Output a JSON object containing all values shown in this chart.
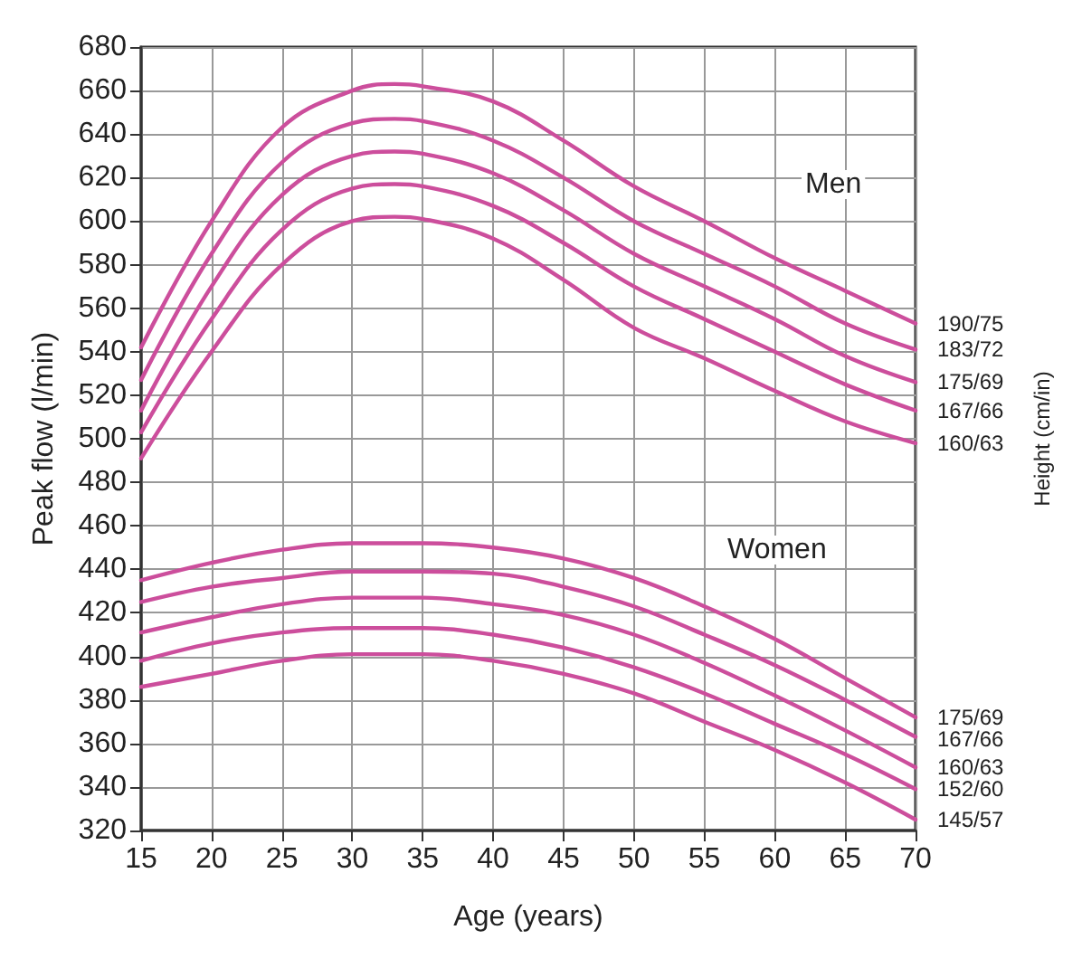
{
  "chart_data": {
    "type": "line",
    "xlabel": "Age (years)",
    "ylabel": "Peak flow (l/min)",
    "y2label": "Height (cm/in)",
    "x": [
      15,
      20,
      25,
      30,
      33,
      35,
      40,
      45,
      50,
      55,
      60,
      65,
      70
    ],
    "series": [
      {
        "name": "190/75",
        "color": "#cc4e9c",
        "values": [
          542,
          600,
          643,
          660,
          663,
          662,
          655,
          637,
          616,
          600,
          583,
          568,
          553
        ]
      },
      {
        "name": "183/72",
        "color": "#cc4e9c",
        "values": [
          527,
          585,
          627,
          645,
          647,
          646,
          637,
          620,
          600,
          585,
          570,
          553,
          541
        ]
      },
      {
        "name": "175/69",
        "color": "#cc4e9c",
        "values": [
          513,
          570,
          612,
          630,
          632,
          631,
          622,
          605,
          585,
          570,
          555,
          538,
          526
        ]
      },
      {
        "name": "167/66",
        "color": "#cc4e9c",
        "values": [
          503,
          555,
          596,
          615,
          617,
          616,
          607,
          590,
          570,
          555,
          540,
          525,
          513
        ]
      },
      {
        "name": "160/63",
        "color": "#cc4e9c",
        "values": [
          491,
          540,
          580,
          600,
          602,
          601,
          592,
          573,
          551,
          537,
          522,
          508,
          498
        ]
      },
      {
        "name": "175/69",
        "color": "#cc4e9c",
        "values": [
          435,
          443,
          449,
          452,
          452,
          452,
          450,
          445,
          436,
          423,
          408,
          390,
          372
        ]
      },
      {
        "name": "167/66",
        "color": "#cc4e9c",
        "values": [
          425,
          432,
          436,
          439,
          439,
          439,
          438,
          432,
          423,
          410,
          396,
          380,
          363
        ]
      },
      {
        "name": "160/63",
        "color": "#cc4e9c",
        "values": [
          411,
          418,
          424,
          427,
          427,
          427,
          424,
          419,
          410,
          397,
          382,
          366,
          349
        ]
      },
      {
        "name": "152/60",
        "color": "#cc4e9c",
        "values": [
          398,
          406,
          411,
          413,
          413,
          413,
          410,
          404,
          395,
          383,
          369,
          355,
          339
        ]
      },
      {
        "name": "145/57",
        "color": "#cc4e9c",
        "values": [
          386,
          392,
          398,
          401,
          401,
          401,
          398,
          392,
          383,
          370,
          357,
          342,
          325
        ]
      }
    ],
    "annotations": [
      "Men",
      "Women"
    ],
    "xlim": [
      15,
      70
    ],
    "xticks": [
      15,
      20,
      25,
      30,
      35,
      40,
      45,
      50,
      55,
      60,
      65,
      70
    ],
    "ylim": [
      320,
      680
    ],
    "yticks": [
      320,
      340,
      360,
      380,
      400,
      420,
      440,
      460,
      480,
      500,
      520,
      540,
      560,
      580,
      600,
      620,
      640,
      660,
      680
    ],
    "grid": true,
    "marker": "none",
    "line_style": "solid",
    "legend": false
  }
}
